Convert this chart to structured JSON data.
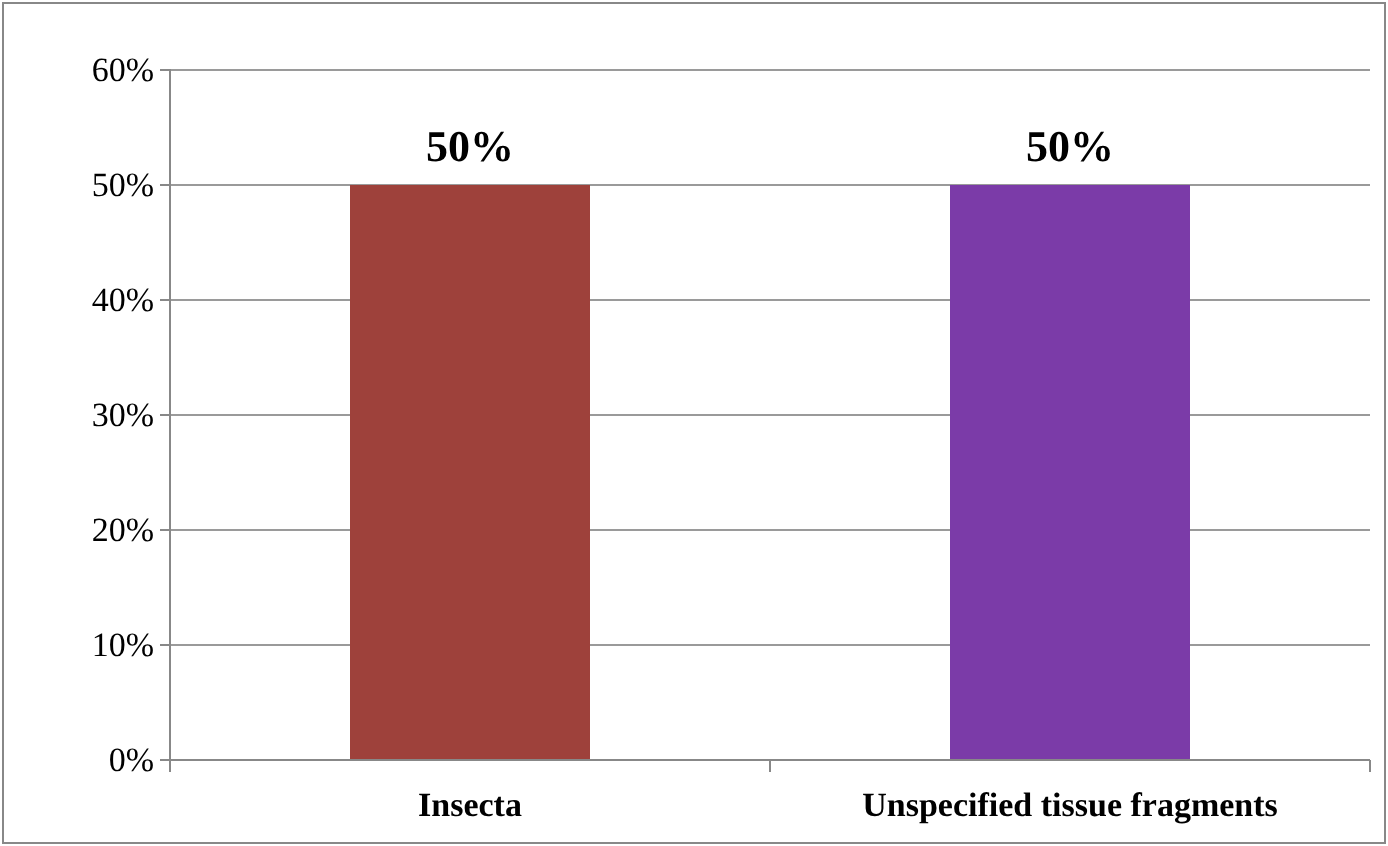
{
  "chart_data": {
    "type": "bar",
    "categories": [
      "Insecta",
      "Unspecified tissue fragments"
    ],
    "values": [
      50,
      50
    ],
    "colors": [
      "#9e413b",
      "#7b3ba8"
    ],
    "value_labels": [
      "50%",
      "50%"
    ],
    "ylim": [
      0,
      60
    ],
    "yticks": [
      {
        "value": 0,
        "label": "0%"
      },
      {
        "value": 10,
        "label": "10%"
      },
      {
        "value": 20,
        "label": "20%"
      },
      {
        "value": 30,
        "label": "30%"
      },
      {
        "value": 40,
        "label": "40%"
      },
      {
        "value": 50,
        "label": "50%"
      },
      {
        "value": 60,
        "label": "60%"
      }
    ],
    "grid": "y"
  }
}
